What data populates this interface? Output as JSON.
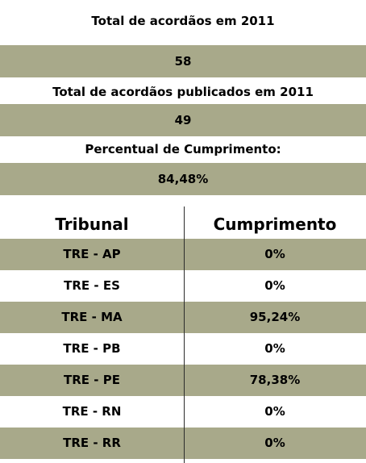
{
  "summary": {
    "total_label": "Total de acordãos em 2011",
    "total_value": "58",
    "published_label": "Total de acordãos publicados em 2011",
    "published_value": "49",
    "percent_label": "Percentual de Cumprimento:",
    "percent_value": "84,48%"
  },
  "table": {
    "headers": [
      "Tribunal",
      "Cumprimento"
    ],
    "rows": [
      {
        "tribunal": "TRE - AP",
        "cumprimento": "0%"
      },
      {
        "tribunal": "TRE - ES",
        "cumprimento": "0%"
      },
      {
        "tribunal": "TRE - MA",
        "cumprimento": "95,24%"
      },
      {
        "tribunal": "TRE - PB",
        "cumprimento": "0%"
      },
      {
        "tribunal": "TRE - PE",
        "cumprimento": "78,38%"
      },
      {
        "tribunal": "TRE - RN",
        "cumprimento": "0%"
      },
      {
        "tribunal": "TRE - RR",
        "cumprimento": "0%"
      }
    ]
  },
  "colors": {
    "band": "#a8a98a",
    "background": "#ffffff",
    "text": "#000000"
  }
}
